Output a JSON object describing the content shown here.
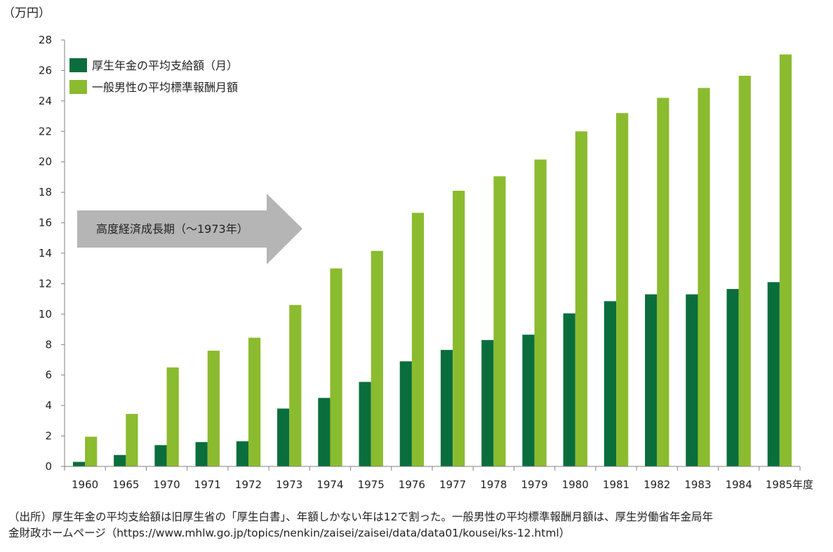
{
  "chart_data": {
    "type": "bar",
    "unit_label": "（万円）",
    "categories": [
      "1960",
      "1965",
      "1970",
      "1971",
      "1972",
      "1973",
      "1974",
      "1975",
      "1976",
      "1977",
      "1978",
      "1979",
      "1980",
      "1981",
      "1982",
      "1983",
      "1984",
      "1985年度"
    ],
    "series": [
      {
        "name": "厚生年金の平均支給額（月）",
        "color": "#0a6e3c",
        "values": [
          0.3,
          0.75,
          1.4,
          1.6,
          1.65,
          3.8,
          4.5,
          5.55,
          6.9,
          7.65,
          8.3,
          8.65,
          10.05,
          10.85,
          11.3,
          11.3,
          11.65,
          12.1
        ]
      },
      {
        "name": "一般男性の平均標準報酬月額",
        "color": "#8bbb2e",
        "values": [
          1.95,
          3.45,
          6.5,
          7.6,
          8.45,
          10.6,
          13.0,
          14.15,
          16.65,
          18.1,
          19.05,
          20.15,
          22.0,
          23.2,
          24.2,
          24.85,
          25.65,
          27.05
        ]
      }
    ],
    "yticks": [
      "0",
      "2",
      "4",
      "6",
      "8",
      "10",
      "12",
      "14",
      "16",
      "18",
      "20",
      "22",
      "24",
      "26",
      "28"
    ],
    "ylim": [
      0,
      28
    ],
    "grid": false,
    "legend_position": "top-left",
    "annotation": {
      "text": "高度経済成長期（～1973年）",
      "color": "#b5b5b5"
    }
  },
  "source_note": {
    "line1": "（出所）厚生年金の平均支給額は旧厚生省の「厚生白書」、年額しかない年は12で割った。一般男性の平均標準報酬月額は、厚生労働省年金局年",
    "line2": "金財政ホームページ（https://www.mhlw.go.jp/topics/nenkin/zaisei/zaisei/data/data01/kousei/ks-12.html）"
  }
}
